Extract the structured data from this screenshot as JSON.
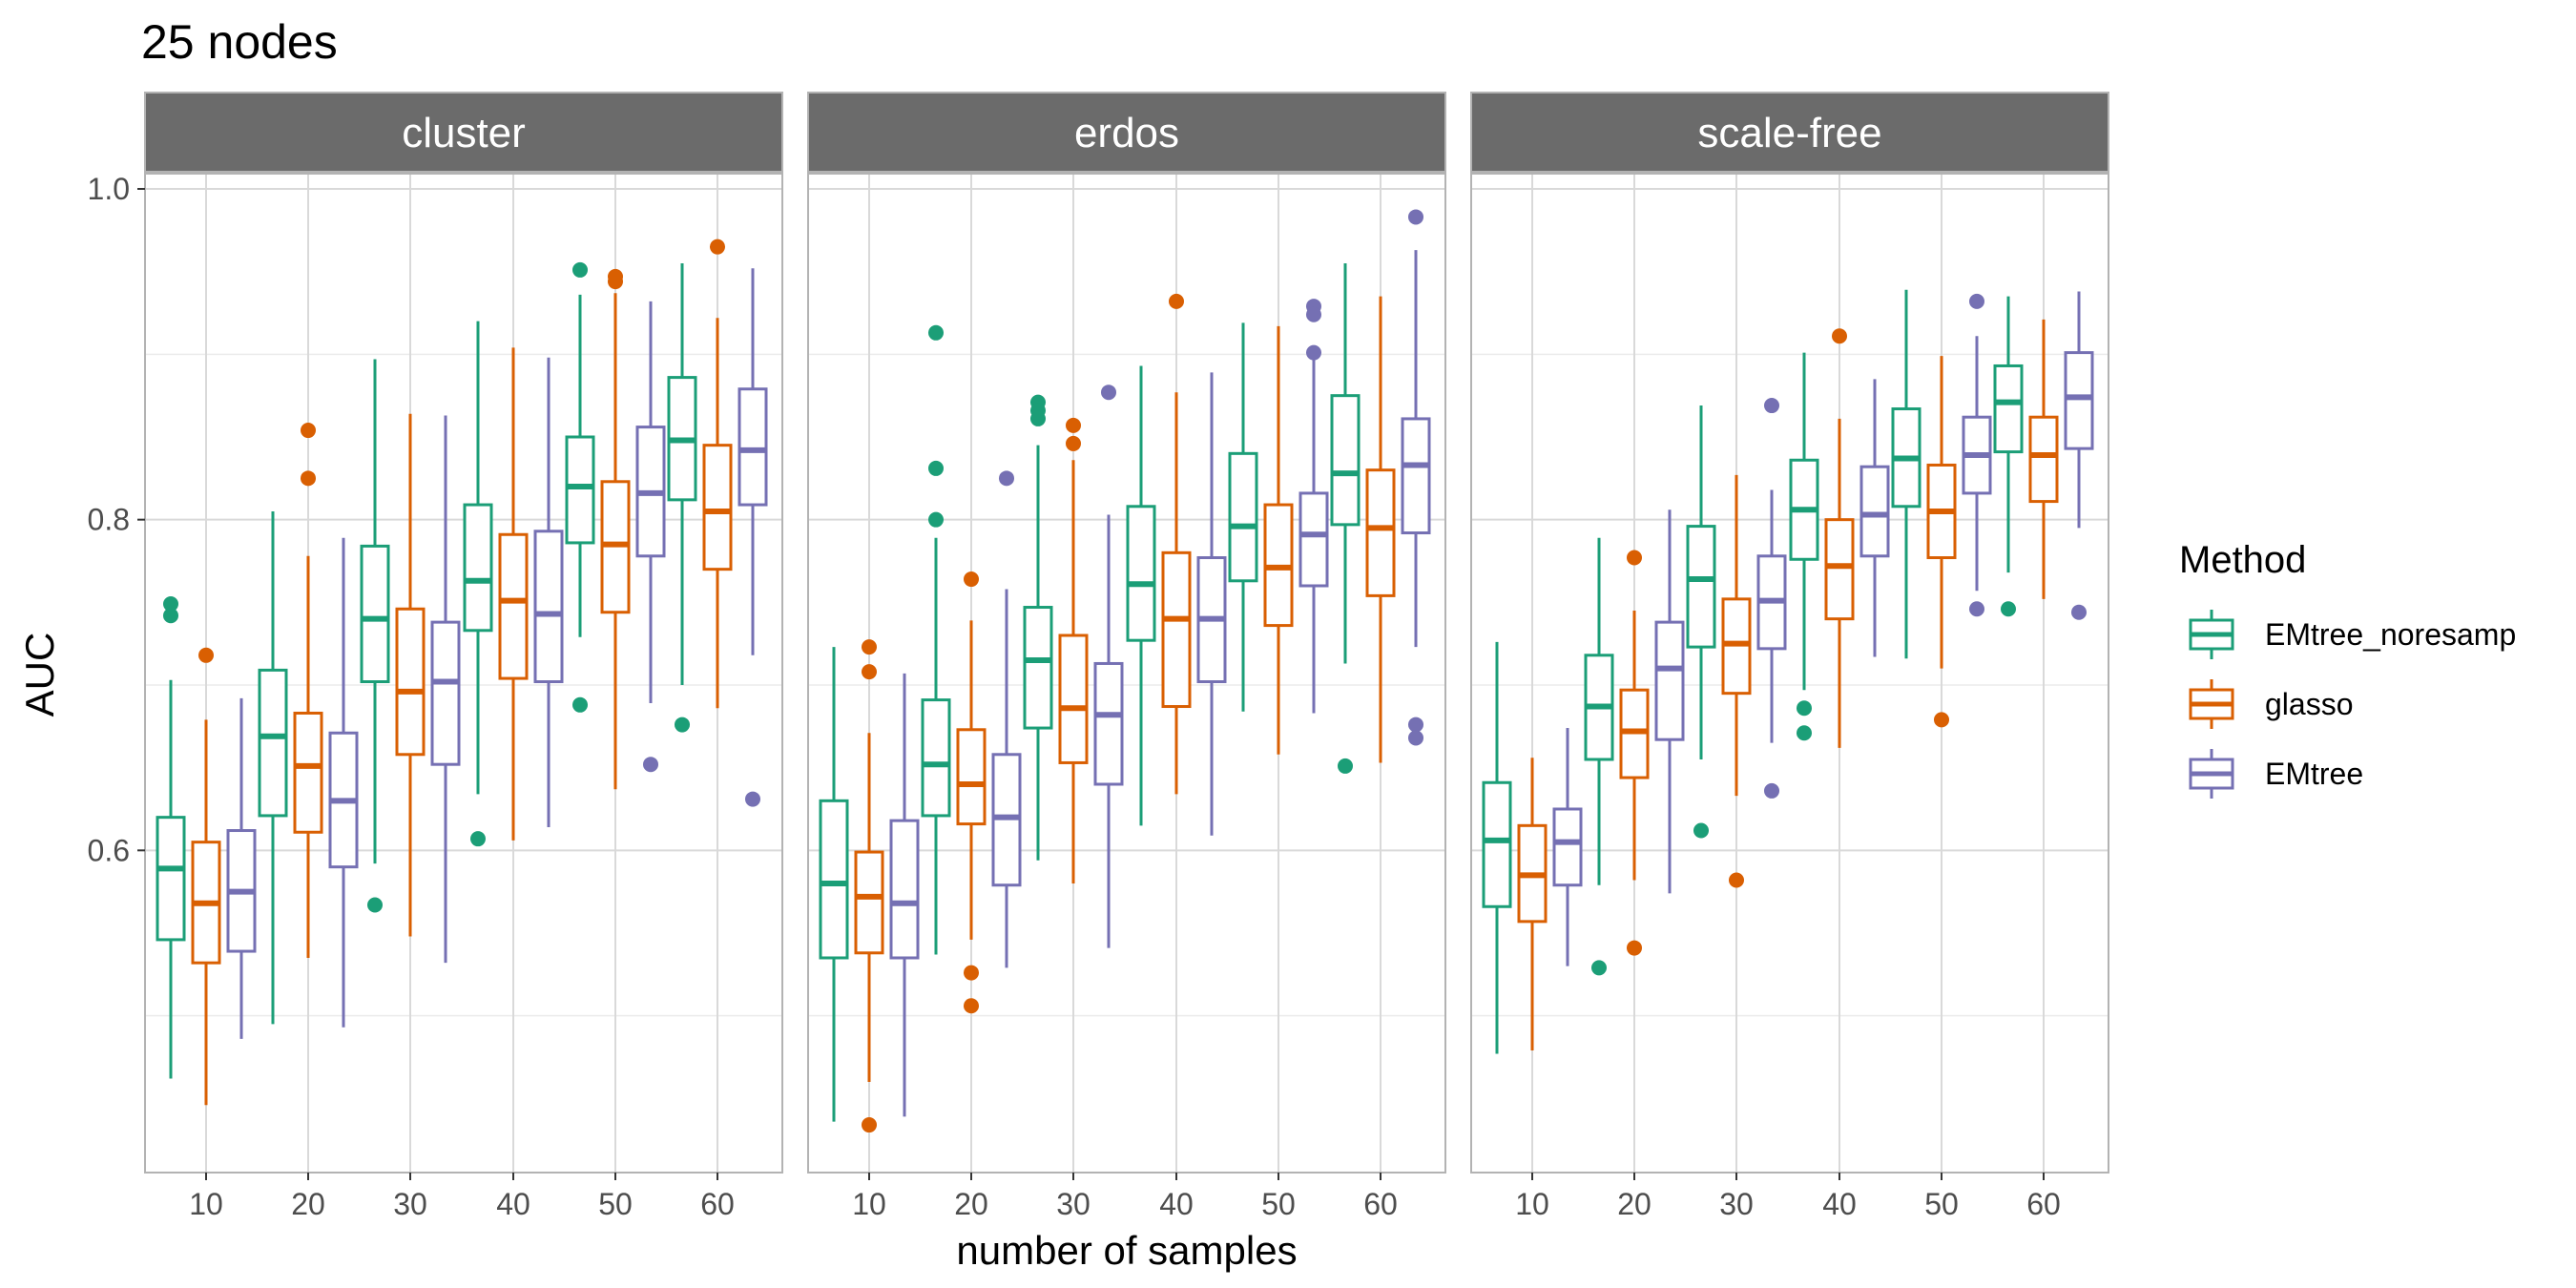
{
  "chart_data": {
    "type": "box",
    "title": "25 nodes",
    "xlabel": "number of samples",
    "ylabel": "AUC",
    "ylim": [
      0.41,
      1.01
    ],
    "y_ticks": [
      0.6,
      0.8,
      1.0
    ],
    "y_tick_labels": [
      "0.6",
      "0.8",
      "1.0"
    ],
    "y_minor_ticks": [
      0.5,
      0.7,
      0.9
    ],
    "categories": [
      "10",
      "20",
      "30",
      "40",
      "50",
      "60"
    ],
    "grid": true,
    "legend": {
      "title": "Method",
      "position": "right",
      "entries": [
        "EMtree_noresamp",
        "glasso",
        "EMtree"
      ]
    },
    "series_colors": {
      "EMtree_noresamp": "#1B9E77",
      "glasso": "#D95F02",
      "EMtree": "#7570B3"
    },
    "facets": [
      {
        "label": "cluster",
        "series": [
          {
            "name": "EMtree_noresamp",
            "boxes": [
              {
                "x": "10",
                "lw": 0.462,
                "q1": 0.546,
                "med": 0.589,
                "q3": 0.62,
                "uw": 0.703,
                "outliers": [
                  0.742,
                  0.749
                ]
              },
              {
                "x": "20",
                "lw": 0.495,
                "q1": 0.621,
                "med": 0.669,
                "q3": 0.709,
                "uw": 0.805,
                "outliers": []
              },
              {
                "x": "30",
                "lw": 0.592,
                "q1": 0.702,
                "med": 0.74,
                "q3": 0.784,
                "uw": 0.897,
                "outliers": [
                  0.567
                ]
              },
              {
                "x": "40",
                "lw": 0.634,
                "q1": 0.733,
                "med": 0.763,
                "q3": 0.809,
                "uw": 0.92,
                "outliers": [
                  0.607
                ]
              },
              {
                "x": "50",
                "lw": 0.729,
                "q1": 0.786,
                "med": 0.82,
                "q3": 0.85,
                "uw": 0.936,
                "outliers": [
                  0.951,
                  0.688
                ]
              },
              {
                "x": "60",
                "lw": 0.7,
                "q1": 0.812,
                "med": 0.848,
                "q3": 0.886,
                "uw": 0.955,
                "outliers": [
                  0.676
                ]
              }
            ]
          },
          {
            "name": "glasso",
            "boxes": [
              {
                "x": "10",
                "lw": 0.446,
                "q1": 0.532,
                "med": 0.568,
                "q3": 0.605,
                "uw": 0.679,
                "outliers": [
                  0.718
                ]
              },
              {
                "x": "20",
                "lw": 0.535,
                "q1": 0.611,
                "med": 0.651,
                "q3": 0.683,
                "uw": 0.778,
                "outliers": [
                  0.854,
                  0.825
                ]
              },
              {
                "x": "30",
                "lw": 0.548,
                "q1": 0.658,
                "med": 0.696,
                "q3": 0.746,
                "uw": 0.864,
                "outliers": []
              },
              {
                "x": "40",
                "lw": 0.606,
                "q1": 0.704,
                "med": 0.751,
                "q3": 0.791,
                "uw": 0.904,
                "outliers": []
              },
              {
                "x": "50",
                "lw": 0.637,
                "q1": 0.744,
                "med": 0.785,
                "q3": 0.823,
                "uw": 0.937,
                "outliers": [
                  0.944,
                  0.947
                ]
              },
              {
                "x": "60",
                "lw": 0.686,
                "q1": 0.77,
                "med": 0.805,
                "q3": 0.845,
                "uw": 0.922,
                "outliers": [
                  0.965
                ]
              }
            ]
          },
          {
            "name": "EMtree",
            "boxes": [
              {
                "x": "10",
                "lw": 0.486,
                "q1": 0.539,
                "med": 0.575,
                "q3": 0.612,
                "uw": 0.692,
                "outliers": []
              },
              {
                "x": "20",
                "lw": 0.493,
                "q1": 0.59,
                "med": 0.63,
                "q3": 0.671,
                "uw": 0.789,
                "outliers": []
              },
              {
                "x": "30",
                "lw": 0.532,
                "q1": 0.652,
                "med": 0.702,
                "q3": 0.738,
                "uw": 0.863,
                "outliers": []
              },
              {
                "x": "40",
                "lw": 0.614,
                "q1": 0.702,
                "med": 0.743,
                "q3": 0.793,
                "uw": 0.898,
                "outliers": []
              },
              {
                "x": "50",
                "lw": 0.689,
                "q1": 0.778,
                "med": 0.816,
                "q3": 0.856,
                "uw": 0.932,
                "outliers": [
                  0.652
                ]
              },
              {
                "x": "60",
                "lw": 0.718,
                "q1": 0.809,
                "med": 0.842,
                "q3": 0.879,
                "uw": 0.952,
                "outliers": [
                  0.631
                ]
              }
            ]
          }
        ]
      },
      {
        "label": "erdos",
        "series": [
          {
            "name": "EMtree_noresamp",
            "boxes": [
              {
                "x": "10",
                "lw": 0.436,
                "q1": 0.535,
                "med": 0.58,
                "q3": 0.63,
                "uw": 0.723,
                "outliers": []
              },
              {
                "x": "20",
                "lw": 0.537,
                "q1": 0.621,
                "med": 0.652,
                "q3": 0.691,
                "uw": 0.789,
                "outliers": [
                  0.913,
                  0.831,
                  0.8
                ]
              },
              {
                "x": "30",
                "lw": 0.594,
                "q1": 0.674,
                "med": 0.715,
                "q3": 0.747,
                "uw": 0.845,
                "outliers": [
                  0.871,
                  0.866,
                  0.861
                ]
              },
              {
                "x": "40",
                "lw": 0.615,
                "q1": 0.727,
                "med": 0.761,
                "q3": 0.808,
                "uw": 0.893,
                "outliers": []
              },
              {
                "x": "50",
                "lw": 0.684,
                "q1": 0.763,
                "med": 0.796,
                "q3": 0.84,
                "uw": 0.919,
                "outliers": []
              },
              {
                "x": "60",
                "lw": 0.713,
                "q1": 0.797,
                "med": 0.828,
                "q3": 0.875,
                "uw": 0.955,
                "outliers": [
                  0.651
                ]
              }
            ]
          },
          {
            "name": "glasso",
            "boxes": [
              {
                "x": "10",
                "lw": 0.46,
                "q1": 0.538,
                "med": 0.572,
                "q3": 0.599,
                "uw": 0.671,
                "outliers": [
                  0.723,
                  0.708,
                  0.434
                ]
              },
              {
                "x": "20",
                "lw": 0.546,
                "q1": 0.616,
                "med": 0.64,
                "q3": 0.673,
                "uw": 0.739,
                "outliers": [
                  0.764,
                  0.526,
                  0.506
                ]
              },
              {
                "x": "30",
                "lw": 0.58,
                "q1": 0.653,
                "med": 0.686,
                "q3": 0.73,
                "uw": 0.836,
                "outliers": [
                  0.857,
                  0.846
                ]
              },
              {
                "x": "40",
                "lw": 0.634,
                "q1": 0.687,
                "med": 0.74,
                "q3": 0.78,
                "uw": 0.877,
                "outliers": [
                  0.932
                ]
              },
              {
                "x": "50",
                "lw": 0.658,
                "q1": 0.736,
                "med": 0.771,
                "q3": 0.809,
                "uw": 0.917,
                "outliers": []
              },
              {
                "x": "60",
                "lw": 0.653,
                "q1": 0.754,
                "med": 0.795,
                "q3": 0.83,
                "uw": 0.935,
                "outliers": []
              }
            ]
          },
          {
            "name": "EMtree",
            "boxes": [
              {
                "x": "10",
                "lw": 0.439,
                "q1": 0.535,
                "med": 0.568,
                "q3": 0.618,
                "uw": 0.707,
                "outliers": []
              },
              {
                "x": "20",
                "lw": 0.529,
                "q1": 0.579,
                "med": 0.62,
                "q3": 0.658,
                "uw": 0.758,
                "outliers": [
                  0.825
                ]
              },
              {
                "x": "30",
                "lw": 0.541,
                "q1": 0.64,
                "med": 0.682,
                "q3": 0.713,
                "uw": 0.803,
                "outliers": [
                  0.877
                ]
              },
              {
                "x": "40",
                "lw": 0.609,
                "q1": 0.702,
                "med": 0.74,
                "q3": 0.777,
                "uw": 0.889,
                "outliers": []
              },
              {
                "x": "50",
                "lw": 0.683,
                "q1": 0.76,
                "med": 0.791,
                "q3": 0.816,
                "uw": 0.897,
                "outliers": [
                  0.929,
                  0.924,
                  0.901
                ]
              },
              {
                "x": "60",
                "lw": 0.723,
                "q1": 0.792,
                "med": 0.833,
                "q3": 0.861,
                "uw": 0.963,
                "outliers": [
                  0.983,
                  0.676,
                  0.668
                ]
              }
            ]
          }
        ]
      },
      {
        "label": "scale-free",
        "series": [
          {
            "name": "EMtree_noresamp",
            "boxes": [
              {
                "x": "10",
                "lw": 0.477,
                "q1": 0.566,
                "med": 0.606,
                "q3": 0.641,
                "uw": 0.726,
                "outliers": []
              },
              {
                "x": "20",
                "lw": 0.579,
                "q1": 0.655,
                "med": 0.687,
                "q3": 0.718,
                "uw": 0.789,
                "outliers": [
                  0.529
                ]
              },
              {
                "x": "30",
                "lw": 0.655,
                "q1": 0.723,
                "med": 0.764,
                "q3": 0.796,
                "uw": 0.869,
                "outliers": [
                  0.612
                ]
              },
              {
                "x": "40",
                "lw": 0.697,
                "q1": 0.776,
                "med": 0.806,
                "q3": 0.836,
                "uw": 0.901,
                "outliers": [
                  0.686,
                  0.671
                ]
              },
              {
                "x": "50",
                "lw": 0.716,
                "q1": 0.808,
                "med": 0.837,
                "q3": 0.867,
                "uw": 0.939,
                "outliers": []
              },
              {
                "x": "60",
                "lw": 0.768,
                "q1": 0.841,
                "med": 0.871,
                "q3": 0.893,
                "uw": 0.935,
                "outliers": [
                  0.746
                ]
              }
            ]
          },
          {
            "name": "glasso",
            "boxes": [
              {
                "x": "10",
                "lw": 0.479,
                "q1": 0.557,
                "med": 0.585,
                "q3": 0.615,
                "uw": 0.656,
                "outliers": []
              },
              {
                "x": "20",
                "lw": 0.582,
                "q1": 0.644,
                "med": 0.672,
                "q3": 0.697,
                "uw": 0.745,
                "outliers": [
                  0.777,
                  0.541
                ]
              },
              {
                "x": "30",
                "lw": 0.633,
                "q1": 0.695,
                "med": 0.725,
                "q3": 0.752,
                "uw": 0.827,
                "outliers": [
                  0.582
                ]
              },
              {
                "x": "40",
                "lw": 0.662,
                "q1": 0.74,
                "med": 0.772,
                "q3": 0.8,
                "uw": 0.861,
                "outliers": [
                  0.911
                ]
              },
              {
                "x": "50",
                "lw": 0.71,
                "q1": 0.777,
                "med": 0.805,
                "q3": 0.833,
                "uw": 0.899,
                "outliers": [
                  0.679
                ]
              },
              {
                "x": "60",
                "lw": 0.752,
                "q1": 0.811,
                "med": 0.839,
                "q3": 0.862,
                "uw": 0.921,
                "outliers": []
              }
            ]
          },
          {
            "name": "EMtree",
            "boxes": [
              {
                "x": "10",
                "lw": 0.53,
                "q1": 0.579,
                "med": 0.605,
                "q3": 0.625,
                "uw": 0.674,
                "outliers": []
              },
              {
                "x": "20",
                "lw": 0.574,
                "q1": 0.667,
                "med": 0.71,
                "q3": 0.738,
                "uw": 0.806,
                "outliers": []
              },
              {
                "x": "30",
                "lw": 0.665,
                "q1": 0.722,
                "med": 0.751,
                "q3": 0.778,
                "uw": 0.818,
                "outliers": [
                  0.869,
                  0.636
                ]
              },
              {
                "x": "40",
                "lw": 0.717,
                "q1": 0.778,
                "med": 0.803,
                "q3": 0.832,
                "uw": 0.885,
                "outliers": []
              },
              {
                "x": "50",
                "lw": 0.757,
                "q1": 0.816,
                "med": 0.839,
                "q3": 0.862,
                "uw": 0.911,
                "outliers": [
                  0.932,
                  0.746
                ]
              },
              {
                "x": "60",
                "lw": 0.795,
                "q1": 0.843,
                "med": 0.874,
                "q3": 0.901,
                "uw": 0.938,
                "outliers": [
                  0.744
                ]
              }
            ]
          }
        ]
      }
    ]
  }
}
